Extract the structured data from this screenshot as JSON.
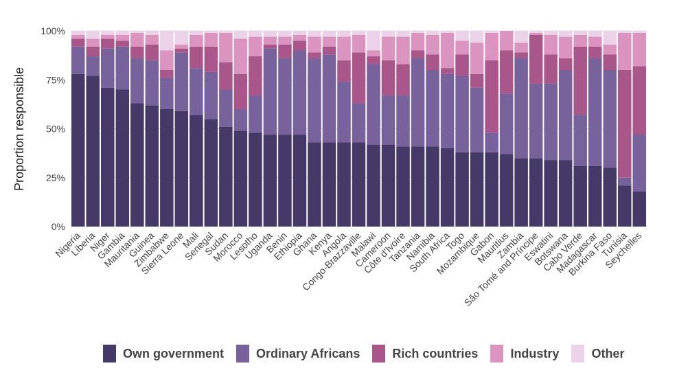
{
  "chart_data": {
    "type": "bar",
    "stacked": true,
    "ylabel": "Proportion responsible",
    "y_ticks": [
      "0%",
      "25%",
      "50%",
      "75%",
      "100%"
    ],
    "ylim": [
      0,
      100
    ],
    "legend_position": "bottom",
    "categories": [
      "Nigeria",
      "Liberia",
      "Niger",
      "Gambia",
      "Mauritania",
      "Guinea",
      "Zimbabwe",
      "Sierra Leone",
      "Mali",
      "Senegal",
      "Sudan",
      "Morocco",
      "Lesotho",
      "Uganda",
      "Benin",
      "Ethiopia",
      "Ghana",
      "Kenya",
      "Angola",
      "Congo-Brazzaville",
      "Malawi",
      "Cameroon",
      "Côte d'Ivoire",
      "Tanzania",
      "Namibia",
      "South Africa",
      "Togo",
      "Mozambique",
      "Gabon",
      "Mauritius",
      "Zambia",
      "São Tomé and Príncipe",
      "Eswatini",
      "Botswana",
      "Cabo Verde",
      "Madagascar",
      "Burkina Faso",
      "Tunisia",
      "Seychelles"
    ],
    "series": [
      {
        "name": "Own government",
        "color": "#453968",
        "values": [
          78,
          77,
          71,
          70,
          63,
          62,
          60,
          59,
          57,
          55,
          51,
          49,
          48,
          47,
          47,
          47,
          43,
          43,
          43,
          43,
          42,
          42,
          41,
          41,
          41,
          40,
          38,
          38,
          38,
          37,
          35,
          35,
          34,
          34,
          31,
          31,
          30,
          21,
          18
        ]
      },
      {
        "name": "Ordinary Africans",
        "color": "#78629b",
        "values": [
          14,
          10,
          20,
          22,
          23,
          23,
          16,
          30,
          24,
          24,
          19,
          11,
          19,
          44,
          39,
          43,
          43,
          45,
          31,
          20,
          41,
          25,
          26,
          45,
          39,
          38,
          39,
          33,
          10,
          31,
          51,
          38,
          39,
          46,
          26,
          55,
          50,
          4,
          29
        ]
      },
      {
        "name": "Rich countries",
        "color": "#a9578a",
        "values": [
          4,
          5,
          5,
          3,
          6,
          8,
          4,
          2,
          11,
          13,
          14,
          18,
          20,
          2,
          7,
          5,
          3,
          4,
          11,
          26,
          4,
          18,
          16,
          4,
          8,
          3,
          11,
          7,
          37,
          22,
          3,
          25,
          15,
          6,
          35,
          6,
          8,
          55,
          35
        ]
      },
      {
        "name": "Industry",
        "color": "#db93bf",
        "values": [
          2,
          4,
          2,
          3,
          7,
          5,
          10,
          2,
          6,
          7,
          15,
          18,
          10,
          4,
          4,
          3,
          8,
          5,
          12,
          9,
          3,
          12,
          14,
          9,
          10,
          18,
          7,
          16,
          14,
          10,
          5,
          1,
          10,
          11,
          6,
          5,
          5,
          19,
          17
        ]
      },
      {
        "name": "Other",
        "color": "#ecd2e8",
        "values": [
          2,
          4,
          2,
          2,
          1,
          2,
          10,
          7,
          2,
          1,
          1,
          4,
          3,
          3,
          3,
          2,
          3,
          3,
          3,
          2,
          10,
          3,
          3,
          1,
          2,
          1,
          5,
          6,
          1,
          0,
          6,
          1,
          2,
          3,
          2,
          3,
          7,
          1,
          1
        ]
      }
    ]
  }
}
